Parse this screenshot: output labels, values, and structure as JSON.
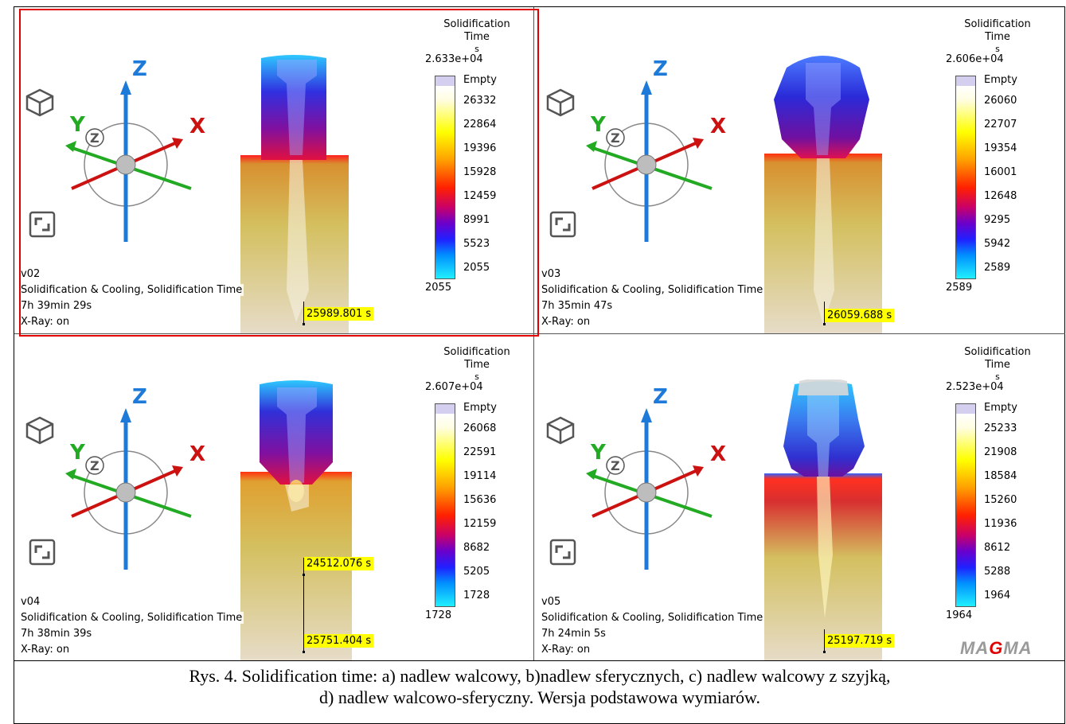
{
  "panels": [
    {
      "name": "v02",
      "info": {
        "version": "v02",
        "module": "Solidification & Cooling, Solidification Time",
        "time": "7h 39min 29s",
        "xray": "X-Ray: on"
      },
      "legend": {
        "title_line1": "Solidification",
        "title_line2": "Time",
        "unit": "s",
        "max": "2.633e+04",
        "empty": "Empty",
        "ticks": [
          "26332",
          "22864",
          "19396",
          "15928",
          "12459",
          "8991",
          "5523",
          "2055"
        ],
        "min": "2055"
      },
      "probes": [
        "25989.801 s"
      ],
      "riser": "cylindrical",
      "selected": true
    },
    {
      "name": "v03",
      "info": {
        "version": "v03",
        "module": "Solidification & Cooling, Solidification Time",
        "time": "7h 35min 47s",
        "xray": "X-Ray: on"
      },
      "legend": {
        "title_line1": "Solidification",
        "title_line2": "Time",
        "unit": "s",
        "max": "2.606e+04",
        "empty": "Empty",
        "ticks": [
          "26060",
          "22707",
          "19354",
          "16001",
          "12648",
          "9295",
          "5942",
          "2589"
        ],
        "min": "2589"
      },
      "probes": [
        "26059.688 s"
      ],
      "riser": "spherical",
      "selected": false
    },
    {
      "name": "v04",
      "info": {
        "version": "v04",
        "module": "Solidification & Cooling, Solidification Time",
        "time": "7h 38min 39s",
        "xray": "X-Ray: on"
      },
      "legend": {
        "title_line1": "Solidification",
        "title_line2": "Time",
        "unit": "s",
        "max": "2.607e+04",
        "empty": "Empty",
        "ticks": [
          "26068",
          "22591",
          "19114",
          "15636",
          "12159",
          "8682",
          "5205",
          "1728"
        ],
        "min": "1728"
      },
      "probes": [
        "24512.076 s",
        "25751.404 s"
      ],
      "riser": "cylindrical-neck",
      "selected": false
    },
    {
      "name": "v05",
      "info": {
        "version": "v05",
        "module": "Solidification & Cooling, Solidification Time",
        "time": "7h 24min 5s",
        "xray": "X-Ray: on"
      },
      "legend": {
        "title_line1": "Solidification",
        "title_line2": "Time",
        "unit": "s",
        "max": "2.523e+04",
        "empty": "Empty",
        "ticks": [
          "25233",
          "21908",
          "18584",
          "15260",
          "11936",
          "8612",
          "5288",
          "1964"
        ],
        "min": "1964"
      },
      "probes": [
        "25197.719 s"
      ],
      "riser": "cylindrical-spherical",
      "selected": false
    }
  ],
  "axes": {
    "x": "X",
    "y": "Y",
    "z": "Z",
    "z_circle": "Z"
  },
  "logo": {
    "a": "MA",
    "g": "G",
    "b": "MA"
  },
  "caption": {
    "line1": "Rys. 4. Solidification time: a) nadlew walcowy, b)nadlew sferycznych, c) nadlew walcowy z szyjką,",
    "line2": "d) nadlew walcowo-sferyczny. Wersja podstawowa wymiarów."
  },
  "colors": {
    "selection": "#e00000",
    "x_axis": "#cc1111",
    "y_axis": "#22aa22",
    "z_axis": "#1e7ad8",
    "probe_bg": "#ffff00"
  }
}
